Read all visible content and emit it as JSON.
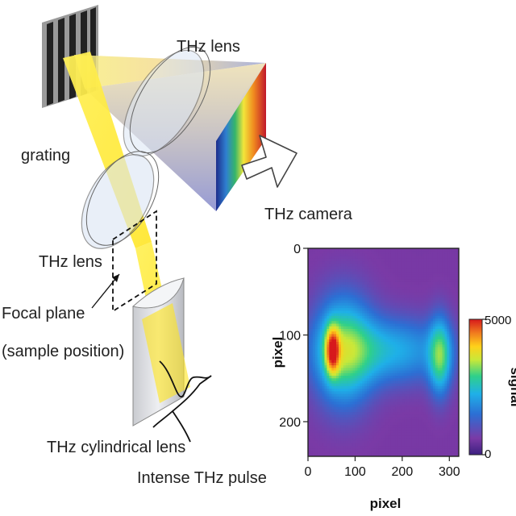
{
  "labels": {
    "thz_lens_top": "THz lens",
    "grating": "grating",
    "thz_camera": "THz camera",
    "thz_lens_left": "THz lens",
    "focal_plane_line1": "Focal plane",
    "focal_plane_line2": "(sample position)",
    "cylindrical_lens": "THz cylindrical lens",
    "thz_pulse": "Intense THz pulse"
  },
  "colors": {
    "beam_yellow": "#ffe41a",
    "lens_fill": "#dce6f5",
    "heatmap_background": "#7a3aa6"
  },
  "chart_data": {
    "type": "heatmap",
    "xlabel": "pixel",
    "ylabel": "pixel",
    "colorbar_label": "signal",
    "xlim": [
      0,
      320
    ],
    "ylim": [
      240,
      0
    ],
    "x_ticks": [
      "0",
      "100",
      "200",
      "300"
    ],
    "y_ticks": [
      "0",
      "100",
      "200"
    ],
    "colorbar_range": [
      0,
      5000
    ],
    "colorbar_ticks": [
      "0",
      "5000"
    ],
    "colormap": [
      "#3b2080",
      "#7a3aa6",
      "#2c6fd4",
      "#1fb0e8",
      "#2fd08a",
      "#c8e83a",
      "#ffd11a",
      "#f07a1e",
      "#d7191c"
    ],
    "blobs": [
      {
        "x": 52,
        "y": 118,
        "sx": 10,
        "sy": 18,
        "amp": 0.62
      },
      {
        "x": 75,
        "y": 118,
        "sx": 42,
        "sy": 42,
        "amp": 0.4
      },
      {
        "x": 175,
        "y": 118,
        "sx": 85,
        "sy": 26,
        "amp": 0.25
      },
      {
        "x": 280,
        "y": 125,
        "sx": 16,
        "sy": 30,
        "amp": 0.36
      }
    ]
  }
}
